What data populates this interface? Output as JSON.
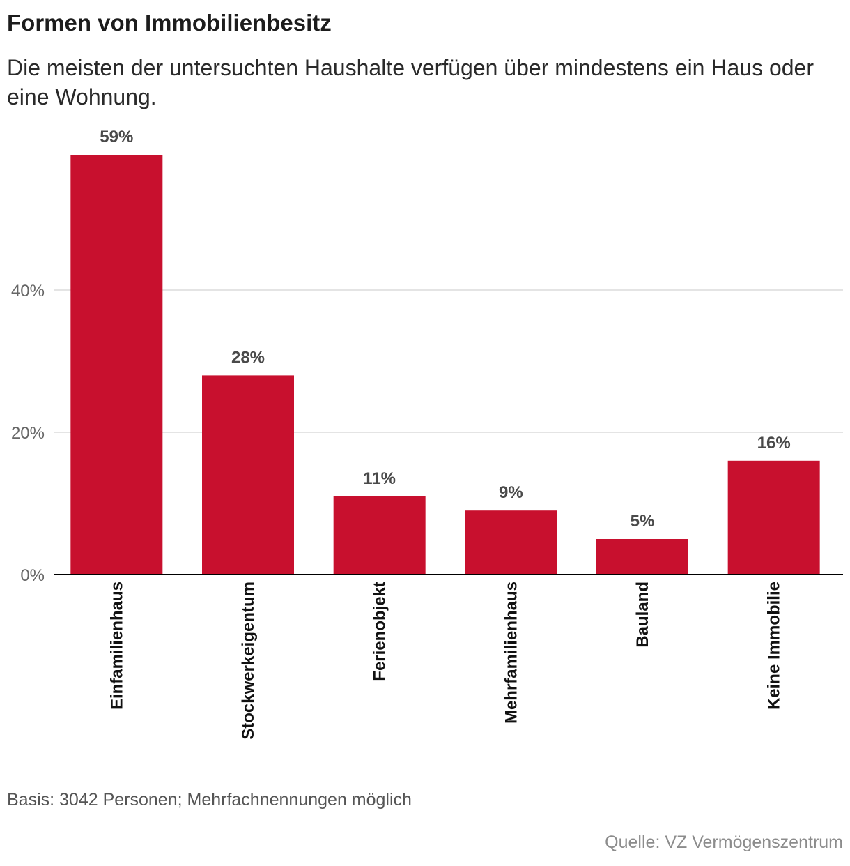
{
  "header": {
    "title": "Formen von Immobilienbesitz",
    "subtitle": "Die meisten der untersuchten Haushalte verfügen über mindestens ein Haus oder eine Wohnung."
  },
  "footer": {
    "note": "Basis: 3042 Personen; Mehrfachnennungen möglich",
    "source": "Quelle: VZ Vermögenszentrum"
  },
  "colors": {
    "bar": "#c8102e",
    "grid": "#dcdcdc",
    "axis": "#000000",
    "tick_label": "#666666",
    "value_label": "#4a4a4a"
  },
  "chart_data": {
    "type": "bar",
    "title": "Formen von Immobilienbesitz",
    "subtitle": "Die meisten der untersuchten Haushalte verfügen über mindestens ein Haus oder eine Wohnung.",
    "categories": [
      "Einfamilienhaus",
      "Stockwerkeigentum",
      "Ferienobjekt",
      "Mehrfamilienhaus",
      "Bauland",
      "Keine Immobilie"
    ],
    "values": [
      59,
      28,
      11,
      9,
      5,
      16
    ],
    "value_labels": [
      "59%",
      "28%",
      "11%",
      "9%",
      "5%",
      "16%"
    ],
    "unit": "%",
    "ylim": [
      0,
      60
    ],
    "yticks": [
      0,
      20,
      40
    ],
    "ytick_labels": [
      "0%",
      "20%",
      "40%"
    ],
    "xlabel": "",
    "ylabel": "",
    "grid": true,
    "legend": "none",
    "x_label_orientation": "vertical"
  }
}
